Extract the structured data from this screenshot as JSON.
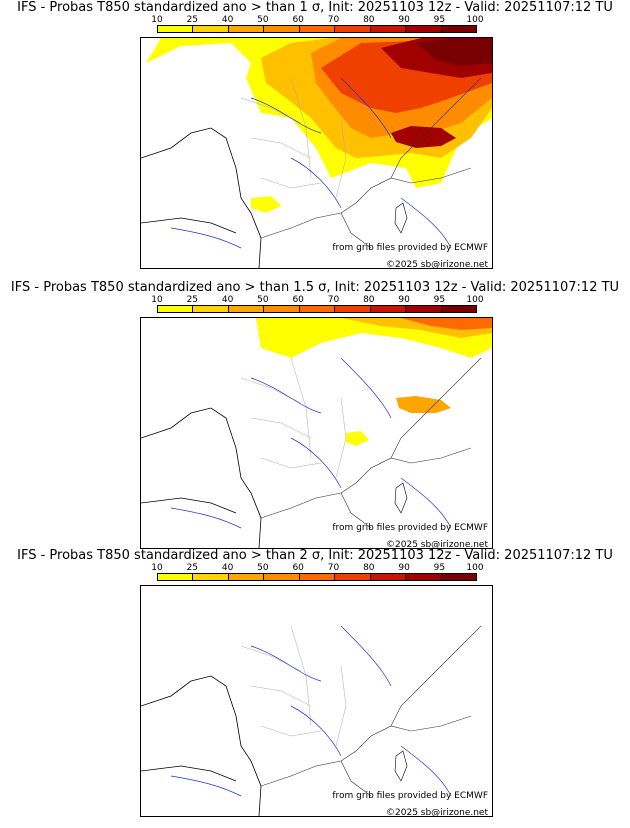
{
  "panels": [
    {
      "title": "IFS - Probas T850  standardized ano > than 1 σ, Init: 20251103 12z - Valid: 20251107:12 TU",
      "threshold_sigma": 1
    },
    {
      "title": "IFS - Probas T850  standardized ano > than 1.5 σ, Init: 20251103 12z - Valid: 20251107:12 TU",
      "threshold_sigma": 1.5
    },
    {
      "title": "IFS - Probas T850  standardized ano > than 2 σ, Init: 20251103 12z - Valid: 20251107:12 TU",
      "threshold_sigma": 2
    }
  ],
  "scale": {
    "labels": [
      "10",
      "25",
      "40",
      "50",
      "60",
      "70",
      "80",
      "90",
      "95",
      "100"
    ],
    "colors": [
      "#ffff00",
      "#ffd400",
      "#ffa500",
      "#ff8c00",
      "#ff6a00",
      "#f04000",
      "#c81400",
      "#a00000",
      "#780000"
    ]
  },
  "credit_source": "from grib files provided by ECMWF",
  "credit_copyright": "©2025 sb@irizone.net"
}
